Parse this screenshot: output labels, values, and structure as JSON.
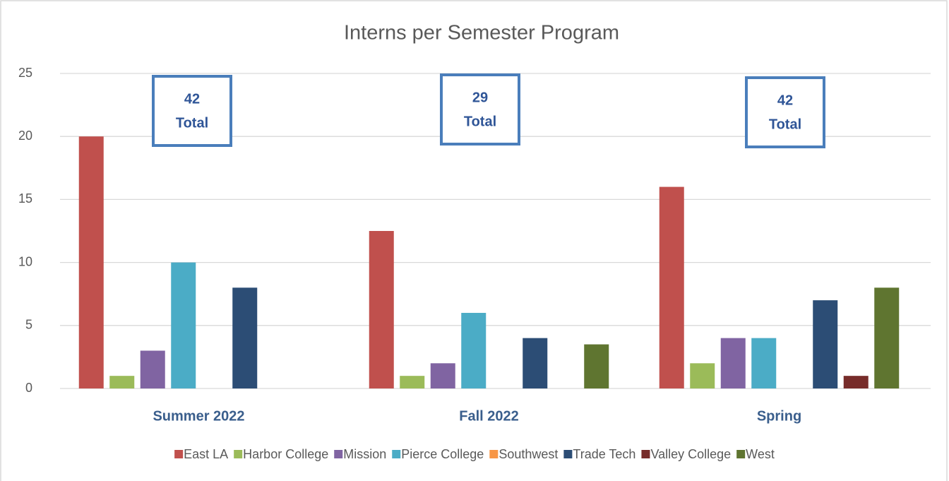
{
  "chart_data": {
    "type": "bar",
    "title": "Interns per Semester Program",
    "categories": [
      "Summer 2022",
      "Fall 2022",
      "Spring"
    ],
    "series": [
      {
        "name": "East LA",
        "color": "#c0504d",
        "values": [
          20,
          12.5,
          16
        ]
      },
      {
        "name": "Harbor College",
        "color": "#9bbb59",
        "values": [
          1,
          1,
          2
        ]
      },
      {
        "name": "Mission",
        "color": "#8064a2",
        "values": [
          3,
          2,
          4
        ]
      },
      {
        "name": "Pierce College",
        "color": "#4bacc6",
        "values": [
          10,
          6,
          4
        ]
      },
      {
        "name": "Southwest",
        "color": "#f79646",
        "values": [
          0,
          0,
          0
        ]
      },
      {
        "name": "Trade Tech",
        "color": "#2c4d75",
        "values": [
          8,
          4,
          7
        ]
      },
      {
        "name": "Valley College",
        "color": "#772c2a",
        "values": [
          0,
          0,
          1
        ]
      },
      {
        "name": "West",
        "color": "#5f7530",
        "values": [
          0,
          3.5,
          8
        ]
      }
    ],
    "annotations": [
      {
        "lines": [
          "42",
          "Total"
        ]
      },
      {
        "lines": [
          "29",
          "Total"
        ]
      },
      {
        "lines": [
          "42",
          "Total"
        ]
      }
    ],
    "ylim": [
      0,
      25
    ],
    "yticks": [
      0,
      5,
      10,
      15,
      20,
      25
    ],
    "grid": true,
    "legend": "bottom"
  }
}
